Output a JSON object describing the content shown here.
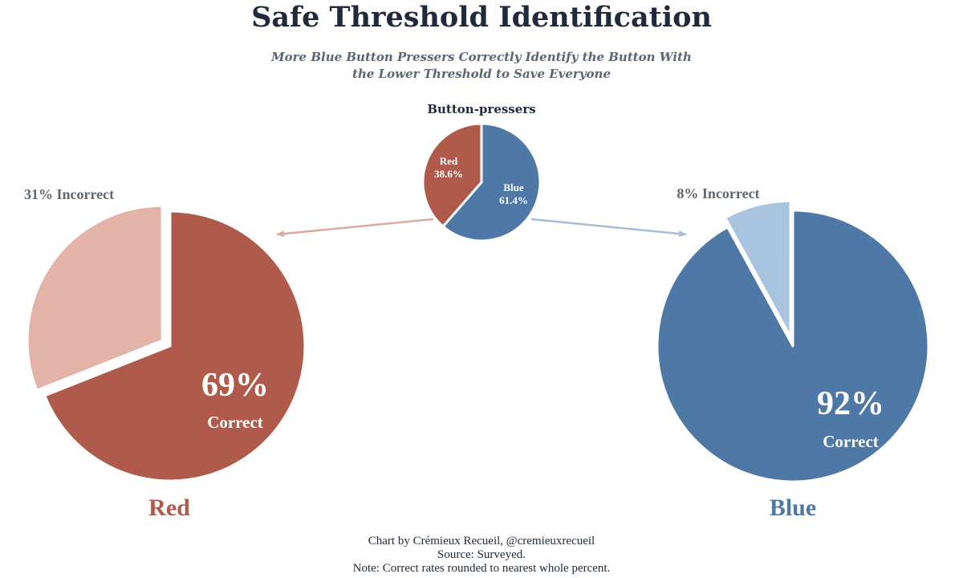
{
  "title": "Safe Threshold Identification",
  "subtitle_lines": [
    "More Blue Button Pressers Correctly Identify the Button With",
    "the Lower Threshold to Save Everyone"
  ],
  "footer": [
    "Chart by Crémieux Recueil, @cremieuxrecueil",
    "Source: Surveyed.",
    "Note: Correct rates rounded to nearest whole percent."
  ],
  "colors": {
    "title": "#1f2a3d",
    "subtitle": "#5a6676",
    "red_dark": "#b05a4b",
    "red_light": "#e3b3a8",
    "blue_dark": "#4e78a5",
    "blue_light": "#a9c4de",
    "label_gray": "#5f6870",
    "arrow_red": "#dba99e",
    "arrow_blue": "#a6bfd6"
  },
  "chart_data": [
    {
      "type": "pie",
      "title": "Button-pressers",
      "slices": [
        {
          "label": "Red",
          "value": 38.6,
          "value_label": "38.6%",
          "color": "#b05a4b"
        },
        {
          "label": "Blue",
          "value": 61.4,
          "value_label": "61.4%",
          "color": "#4e78a5"
        }
      ]
    },
    {
      "type": "pie",
      "title": "Red",
      "slices": [
        {
          "label": "Correct",
          "value": 69,
          "value_label": "69%",
          "color": "#b05a4b"
        },
        {
          "label": "31% Incorrect",
          "value": 31,
          "color": "#e3b3a8",
          "exploded": true
        }
      ]
    },
    {
      "type": "pie",
      "title": "Blue",
      "slices": [
        {
          "label": "Correct",
          "value": 92,
          "value_label": "92%",
          "color": "#4e78a5"
        },
        {
          "label": "8% Incorrect",
          "value": 8,
          "color": "#a9c4de",
          "exploded": true
        }
      ]
    }
  ]
}
